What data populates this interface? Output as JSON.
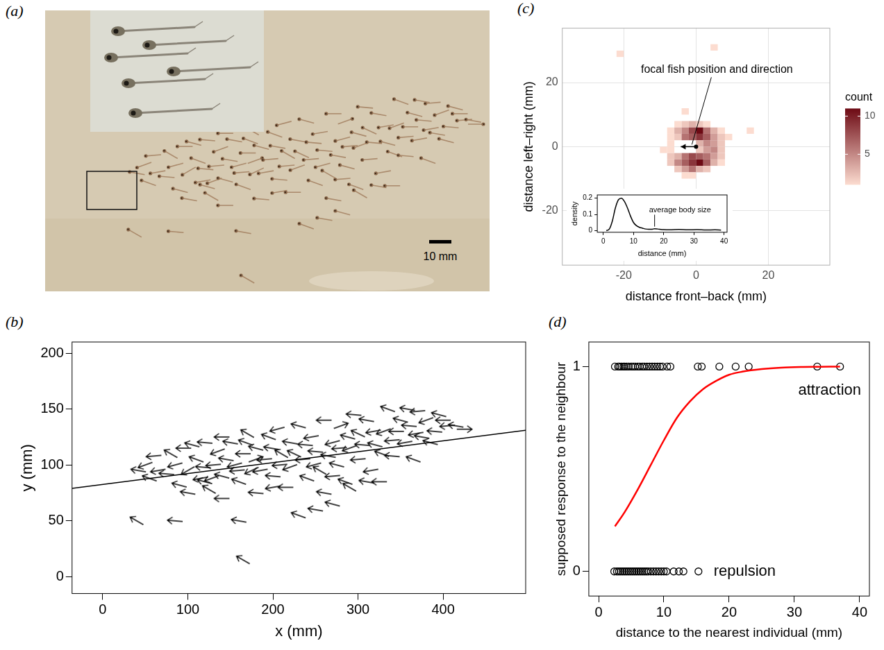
{
  "photo": {
    "panel": "(a)",
    "scale_bar": "10 mm"
  },
  "chart_data": [
    {
      "panel": "(b)",
      "type": "scatter",
      "marker": "arrow",
      "color": "#000000",
      "grid": false,
      "x_label": "x (mm)",
      "y_label": "y (mm)",
      "xlim": [
        -36,
        497
      ],
      "ylim": [
        -15,
        210
      ],
      "xticks": [
        0,
        100,
        200,
        300,
        400
      ],
      "yticks": [
        0,
        50,
        100,
        150,
        200
      ],
      "x": [
        42,
        50,
        55,
        60,
        65,
        75,
        80,
        85,
        90,
        95,
        100,
        100,
        105,
        110,
        115,
        118,
        120,
        120,
        125,
        128,
        130,
        135,
        140,
        140,
        140,
        145,
        150,
        155,
        158,
        160,
        165,
        168,
        170,
        175,
        180,
        180,
        180,
        185,
        190,
        195,
        198,
        200,
        200,
        205,
        208,
        210,
        215,
        220,
        220,
        225,
        230,
        235,
        238,
        240,
        245,
        248,
        250,
        255,
        260,
        260,
        265,
        270,
        270,
        275,
        278,
        280,
        285,
        288,
        290,
        295,
        300,
        300,
        305,
        310,
        310,
        315,
        318,
        320,
        325,
        328,
        330,
        335,
        340,
        340,
        345,
        350,
        355,
        358,
        360,
        365,
        368,
        370,
        375,
        380,
        385,
        390,
        395,
        400,
        405,
        415,
        425,
        40,
        85,
        160,
        165,
        230,
        250,
        270,
        290
      ],
      "y": [
        95,
        100,
        88,
        108,
        95,
        92,
        110,
        100,
        82,
        115,
        95,
        75,
        118,
        105,
        88,
        98,
        120,
        85,
        78,
        88,
        100,
        112,
        90,
        70,
        125,
        105,
        120,
        100,
        95,
        85,
        110,
        120,
        128,
        95,
        75,
        115,
        105,
        95,
        105,
        125,
        115,
        90,
        80,
        132,
        100,
        110,
        80,
        120,
        98,
        110,
        135,
        105,
        118,
        88,
        125,
        100,
        112,
        95,
        140,
        75,
        108,
        120,
        90,
        100,
        115,
        135,
        85,
        125,
        115,
        145,
        105,
        128,
        118,
        140,
        85,
        95,
        130,
        118,
        85,
        110,
        130,
        150,
        108,
        122,
        130,
        140,
        120,
        150,
        135,
        105,
        128,
        148,
        125,
        140,
        120,
        130,
        145,
        140,
        135,
        135,
        132,
        50,
        50,
        50,
        15,
        55,
        60,
        65,
        80
      ],
      "heading": [
        170,
        200,
        160,
        185,
        190,
        175,
        150,
        195,
        165,
        180,
        210,
        170,
        165,
        160,
        190,
        175,
        175,
        165,
        150,
        200,
        185,
        200,
        165,
        180,
        180,
        170,
        170,
        195,
        185,
        160,
        180,
        160,
        150,
        205,
        175,
        165,
        20,
        190,
        185,
        160,
        170,
        175,
        190,
        195,
        185,
        150,
        180,
        170,
        200,
        155,
        165,
        185,
        175,
        160,
        190,
        195,
        175,
        150,
        180,
        170,
        170,
        195,
        185,
        165,
        185,
        20,
        160,
        165,
        200,
        175,
        185,
        155,
        175,
        170,
        170,
        190,
        190,
        165,
        180,
        160,
        200,
        160,
        175,
        185,
        180,
        165,
        190,
        170,
        175,
        160,
        190,
        185,
        170,
        200,
        165,
        175,
        165,
        180,
        185,
        170,
        0,
        150,
        175,
        170,
        150,
        160,
        170,
        165,
        150
      ],
      "line": {
        "color": "#000000",
        "x": [
          -36,
          497
        ],
        "y": [
          79,
          131
        ]
      }
    },
    {
      "panel": "(c)",
      "type": "heatmap",
      "grid": true,
      "x_label": "distance front–back (mm)",
      "y_label": "distance left–right (mm)",
      "xlim": [
        -37,
        37
      ],
      "ylim": [
        -37,
        37
      ],
      "xticks": [
        -20,
        0,
        20
      ],
      "yticks": [
        -20,
        0,
        20
      ],
      "bin_width": 2,
      "cells": {
        "x": [
          -5,
          -3,
          -1,
          1,
          3,
          -7,
          -5,
          -3,
          -1,
          1,
          3,
          5,
          7,
          -7,
          -5,
          -3,
          -1,
          1,
          3,
          5,
          7,
          1,
          3,
          5,
          7,
          -7,
          1,
          3,
          5,
          7,
          -7,
          -7,
          -5,
          -3,
          -1,
          1,
          3,
          5,
          7,
          -7,
          -5,
          -3,
          -1,
          1,
          3,
          5,
          7,
          -5,
          -3,
          -1,
          1,
          3,
          -3,
          -1,
          -21,
          5,
          -9,
          15,
          -3,
          9
        ],
        "y": [
          7,
          7,
          7,
          7,
          7,
          5,
          5,
          5,
          5,
          5,
          5,
          5,
          5,
          3,
          3,
          3,
          3,
          3,
          3,
          3,
          3,
          1,
          1,
          1,
          1,
          1,
          -1,
          -1,
          -1,
          -1,
          -1,
          -3,
          -3,
          -3,
          -3,
          -3,
          -3,
          -3,
          -3,
          -5,
          -5,
          -5,
          -5,
          -5,
          -5,
          -5,
          -5,
          -7,
          -7,
          -7,
          -7,
          -7,
          -9,
          -9,
          29,
          31,
          -1,
          5,
          11,
          3
        ],
        "count": [
          1,
          2,
          3,
          2,
          1,
          1,
          3,
          5,
          8,
          11,
          6,
          3,
          1,
          1,
          2,
          6,
          7,
          9,
          7,
          4,
          2,
          3,
          5,
          4,
          2,
          1,
          2,
          4,
          5,
          2,
          1,
          2,
          3,
          6,
          8,
          7,
          6,
          4,
          2,
          2,
          5,
          7,
          9,
          11,
          7,
          3,
          1,
          2,
          4,
          6,
          3,
          2,
          1,
          1,
          1,
          1,
          1,
          1,
          1,
          1
        ]
      },
      "colorbar": {
        "title": "count",
        "range": [
          1,
          11
        ],
        "ticks": [
          5,
          10
        ],
        "colors": [
          "#fcdcd0",
          "#6d0a14"
        ]
      },
      "focal_fish": {
        "label": "focal fish position and direction",
        "x": 0,
        "y": 0,
        "heading": 180
      },
      "inset": {
        "type": "line",
        "color": "#000000",
        "x_label": "distance (mm)",
        "y_label": "density",
        "xlim": [
          -2,
          41
        ],
        "ylim": [
          -0.01,
          0.22
        ],
        "xticks": [
          0,
          10,
          20,
          30,
          40
        ],
        "yticks": [
          0,
          0.1,
          0.2
        ],
        "x": [
          1,
          2,
          3,
          4,
          5,
          6,
          7,
          8,
          9,
          10,
          11,
          12,
          13,
          14,
          15,
          16,
          17,
          18,
          20,
          22,
          25,
          28,
          31,
          34,
          37,
          39
        ],
        "y": [
          0,
          0.01,
          0.06,
          0.14,
          0.19,
          0.2,
          0.18,
          0.14,
          0.09,
          0.05,
          0.03,
          0.02,
          0.015,
          0.01,
          0.008,
          0.008,
          0.012,
          0.01,
          0.006,
          0.005,
          0.007,
          0.005,
          0.006,
          0.004,
          0.005,
          0.003
        ],
        "annotation": {
          "text": "average body size",
          "x": 17
        }
      }
    },
    {
      "panel": "(d)",
      "type": "scatter",
      "marker": "open circle",
      "grid": false,
      "x_label": "distance to the nearest individual (mm)",
      "y_label": "supposed response to the neighbour",
      "xlim": [
        -1.5,
        41.5
      ],
      "ylim": [
        -0.12,
        1.12
      ],
      "xticks": [
        0,
        10,
        20,
        30,
        40
      ],
      "yticks": [
        0,
        1
      ],
      "series": [
        {
          "name": "attraction",
          "color": "#000000",
          "x": [
            2.5,
            3,
            3.2,
            3.5,
            3.8,
            4,
            4.3,
            4.6,
            5,
            5.3,
            5.6,
            6,
            6.3,
            6.7,
            7,
            7.4,
            7.8,
            8.2,
            8.6,
            9,
            9.4,
            9.8,
            10.5,
            11,
            15.2,
            15.8,
            18.5,
            21,
            23,
            33.5,
            37
          ],
          "values": [
            1,
            1,
            1,
            1,
            1,
            1,
            1,
            1,
            1,
            1,
            1,
            1,
            1,
            1,
            1,
            1,
            1,
            1,
            1,
            1,
            1,
            1,
            1,
            1,
            1,
            1,
            1,
            1,
            1,
            1,
            1
          ]
        },
        {
          "name": "repulsion",
          "color": "#000000",
          "x": [
            2.4,
            2.8,
            3.1,
            3.4,
            3.7,
            4,
            4.3,
            4.6,
            4.9,
            5.2,
            5.5,
            5.8,
            6.1,
            6.4,
            6.7,
            7,
            7.3,
            7.6,
            8,
            8.4,
            8.8,
            9.2,
            9.6,
            10,
            10.4,
            11.5,
            12.3,
            13,
            15.3
          ],
          "values": [
            0,
            0,
            0,
            0,
            0,
            0,
            0,
            0,
            0,
            0,
            0,
            0,
            0,
            0,
            0,
            0,
            0,
            0,
            0,
            0,
            0,
            0,
            0,
            0,
            0,
            0,
            0,
            0,
            0
          ]
        }
      ],
      "curve": {
        "color": "#ff0000",
        "x": [
          2.5,
          4,
          6,
          8,
          10,
          12,
          14,
          16,
          18,
          20,
          22,
          25,
          28,
          31,
          34,
          37
        ],
        "values": [
          0.22,
          0.29,
          0.4,
          0.52,
          0.64,
          0.75,
          0.83,
          0.89,
          0.93,
          0.96,
          0.975,
          0.988,
          0.995,
          0.998,
          0.999,
          1
        ]
      }
    }
  ]
}
